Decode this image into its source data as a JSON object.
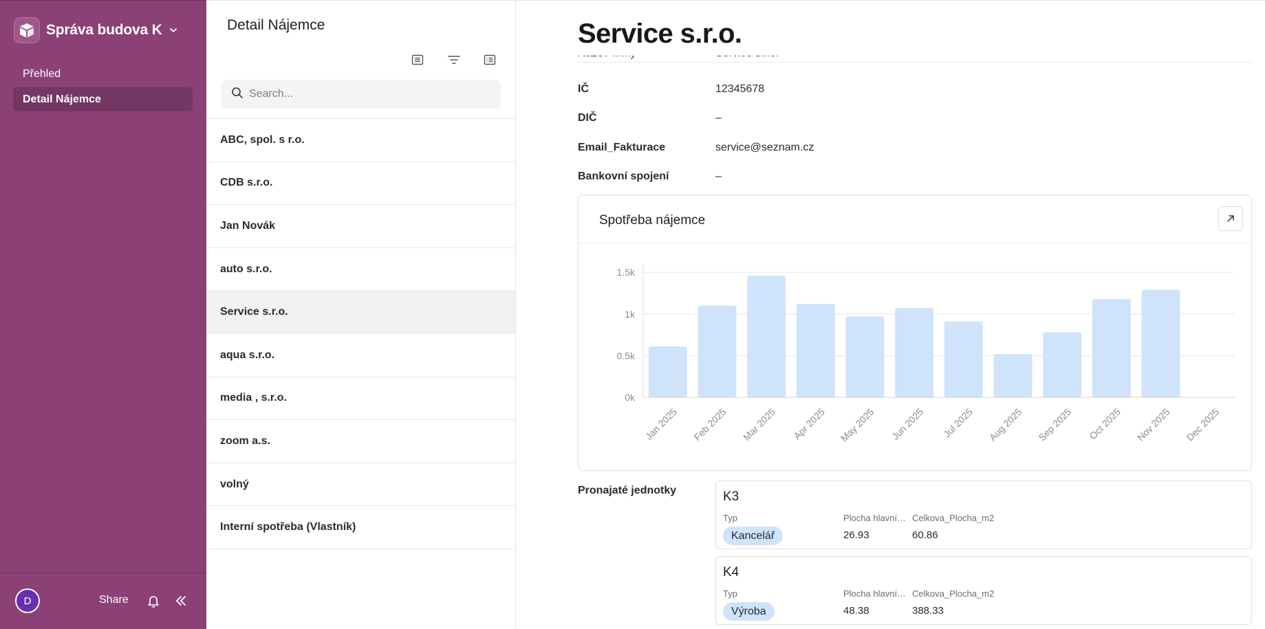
{
  "sidebar": {
    "workspace_name": "Správa budova K",
    "items": [
      {
        "label": "Přehled"
      },
      {
        "label": "Detail Nájemce"
      }
    ],
    "footer": {
      "avatar_initial": "D",
      "share_label": "Share"
    }
  },
  "list_panel": {
    "title": "Detail Nájemce",
    "search_placeholder": "Search...",
    "items": [
      "ABC, spol. s r.o.",
      "CDB s.r.o.",
      "Jan Novák",
      "auto s.r.o.",
      "Service s.r.o.",
      "aqua s.r.o.",
      "media , s.r.o.",
      "zoom a.s.",
      "volný",
      "Interní spotřeba (Vlastník)"
    ],
    "selected_index": 4
  },
  "detail": {
    "title": "Service s.r.o.",
    "cutoff_field": {
      "label": "Název firmy",
      "value": "Service s.r.o."
    },
    "fields": [
      {
        "label": "IČ",
        "value": "12345678"
      },
      {
        "label": "DIČ",
        "value": "–"
      },
      {
        "label": "Email_Fakturace",
        "value": "service@seznam.cz"
      },
      {
        "label": "Bankovní spojení",
        "value": "–"
      }
    ],
    "chart_title": "Spotřeba nájemce",
    "units_label": "Pronajaté jednotky",
    "units": [
      {
        "name": "K3",
        "col1_label": "Typ",
        "type": "Kancelář",
        "col2_label": "Plocha hlavní…",
        "col2_value": "26.93",
        "col3_label": "Celkova_Plocha_m2",
        "col3_value": "60.86"
      },
      {
        "name": "K4",
        "col1_label": "Typ",
        "type": "Výroba",
        "col2_label": "Plocha hlavní…",
        "col2_value": "48.38",
        "col3_label": "Celkova_Plocha_m2",
        "col3_value": "388.33"
      }
    ]
  },
  "colors": {
    "sidebar": "#8b4176",
    "bar": "#cfe3fb",
    "badge": "#cfe3fb"
  },
  "chart_data": {
    "type": "bar",
    "title": "Spotřeba nájemce",
    "categories": [
      "Jan 2025",
      "Feb 2025",
      "Mar 2025",
      "Apr 2025",
      "May 2025",
      "Jun 2025",
      "Jul 2025",
      "Aug 2025",
      "Sep 2025",
      "Oct 2025",
      "Nov 2025",
      "Dec 2025"
    ],
    "values": [
      610,
      1100,
      1460,
      1120,
      970,
      1070,
      910,
      520,
      780,
      1180,
      1290,
      0
    ],
    "ylim": [
      0,
      1600
    ],
    "yticks": [
      0,
      500,
      1000,
      1500
    ],
    "ytick_labels": [
      "0k",
      "0.5k",
      "1k",
      "1.5k"
    ],
    "grid": true
  }
}
